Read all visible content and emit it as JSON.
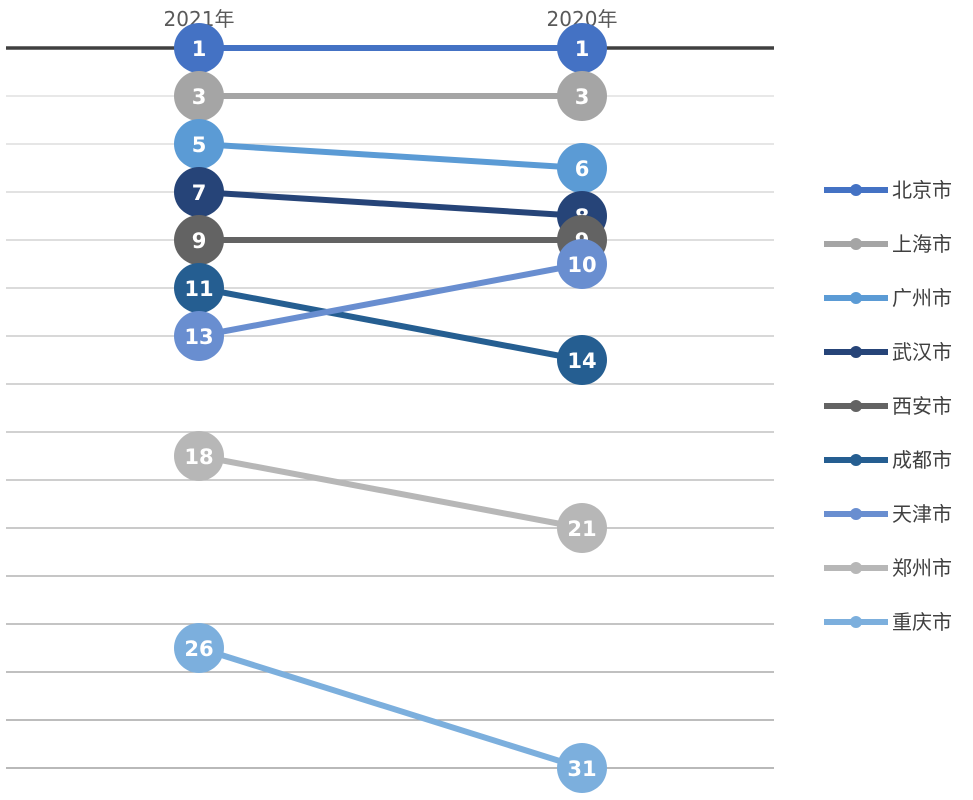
{
  "chart_data": {
    "type": "line",
    "chart_kind": "slope",
    "categories": [
      "2021年",
      "2020年"
    ],
    "y_reversed": true,
    "ylim": [
      1,
      31
    ],
    "grid": true,
    "legend_position": "right",
    "title": "",
    "xlabel": "",
    "ylabel": "",
    "series": [
      {
        "name": "北京市",
        "values": [
          1,
          1
        ],
        "color": "#4472C4"
      },
      {
        "name": "上海市",
        "values": [
          3,
          3
        ],
        "color": "#A5A5A5"
      },
      {
        "name": "广州市",
        "values": [
          5,
          6
        ],
        "color": "#5B9BD5"
      },
      {
        "name": "武汉市",
        "values": [
          7,
          8
        ],
        "color": "#264478"
      },
      {
        "name": "西安市",
        "values": [
          9,
          9
        ],
        "color": "#636363"
      },
      {
        "name": "成都市",
        "values": [
          11,
          14
        ],
        "color": "#255E91"
      },
      {
        "name": "天津市",
        "values": [
          13,
          10
        ],
        "color": "#698ED0"
      },
      {
        "name": "郑州市",
        "values": [
          18,
          21
        ],
        "color": "#B7B7B7"
      },
      {
        "name": "重庆市",
        "values": [
          26,
          31
        ],
        "color": "#7CAFDD"
      }
    ]
  }
}
